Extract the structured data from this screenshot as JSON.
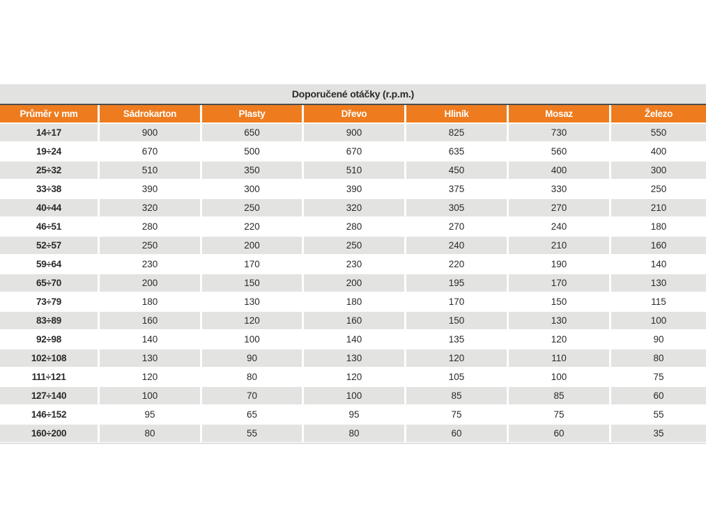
{
  "table": {
    "title": "Doporučené otáčky (r.p.m.)",
    "columns": [
      "Průměr v mm",
      "Sádrokarton",
      "Plasty",
      "Dřevo",
      "Hliník",
      "Mosaz",
      "Železo"
    ],
    "rows": [
      [
        "14÷17",
        "900",
        "650",
        "900",
        "825",
        "730",
        "550"
      ],
      [
        "19÷24",
        "670",
        "500",
        "670",
        "635",
        "560",
        "400"
      ],
      [
        "25÷32",
        "510",
        "350",
        "510",
        "450",
        "400",
        "300"
      ],
      [
        "33÷38",
        "390",
        "300",
        "390",
        "375",
        "330",
        "250"
      ],
      [
        "40÷44",
        "320",
        "250",
        "320",
        "305",
        "270",
        "210"
      ],
      [
        "46÷51",
        "280",
        "220",
        "280",
        "270",
        "240",
        "180"
      ],
      [
        "52÷57",
        "250",
        "200",
        "250",
        "240",
        "210",
        "160"
      ],
      [
        "59÷64",
        "230",
        "170",
        "230",
        "220",
        "190",
        "140"
      ],
      [
        "65÷70",
        "200",
        "150",
        "200",
        "195",
        "170",
        "130"
      ],
      [
        "73÷79",
        "180",
        "130",
        "180",
        "170",
        "150",
        "115"
      ],
      [
        "83÷89",
        "160",
        "120",
        "160",
        "150",
        "130",
        "100"
      ],
      [
        "92÷98",
        "140",
        "100",
        "140",
        "135",
        "120",
        "90"
      ],
      [
        "102÷108",
        "130",
        "90",
        "130",
        "120",
        "110",
        "80"
      ],
      [
        "111÷121",
        "120",
        "80",
        "120",
        "105",
        "100",
        "75"
      ],
      [
        "127÷140",
        "100",
        "70",
        "100",
        "85",
        "85",
        "60"
      ],
      [
        "146÷152",
        "95",
        "65",
        "95",
        "75",
        "75",
        "55"
      ],
      [
        "160÷200",
        "80",
        "55",
        "80",
        "60",
        "60",
        "35"
      ]
    ],
    "colors": {
      "header_bg": "#ee7c1f",
      "header_text": "#ffffff",
      "title_bar_bg": "#e2e2e1",
      "row_alt_bg": "#e3e3e2",
      "text": "#2b2927",
      "header_top_border": "#4d4d4d"
    }
  }
}
